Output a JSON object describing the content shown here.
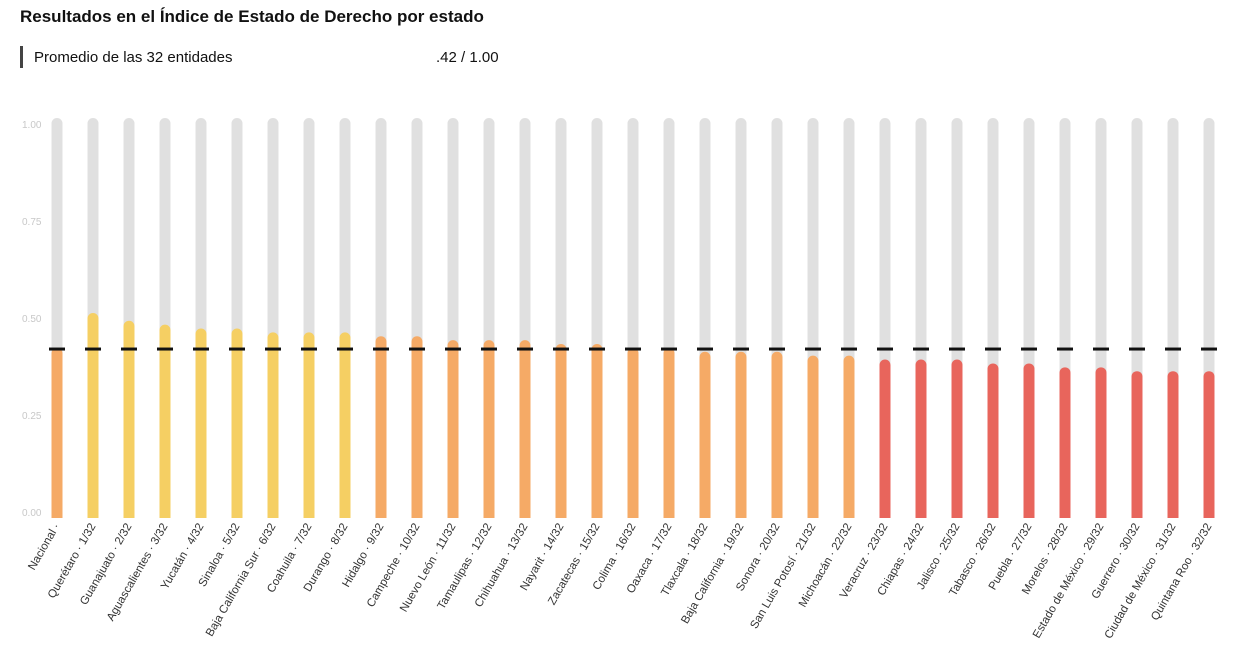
{
  "header": {
    "title": "Resultados en el Índice de Estado de Derecho por estado",
    "average_label": "Promedio de las 32 entidades",
    "average_value": ".42 / 1.00"
  },
  "colors": {
    "track": "#e0e0e0",
    "high": "#f5cf63",
    "mid": "#f5aa66",
    "low": "#e8655c",
    "marker": "#111111"
  },
  "chart_data": {
    "type": "bar",
    "title": "Resultados en el Índice de Estado de Derecho por estado",
    "xlabel": "",
    "ylabel": "",
    "ylim": [
      0,
      1
    ],
    "yticks": [
      "0.00",
      "0.25",
      "0.50",
      "0.75",
      "1.00"
    ],
    "ytick_values": [
      0,
      0.25,
      0.5,
      0.75,
      1.0
    ],
    "reference_line": {
      "value": 0.42
    },
    "grid": false,
    "categories": [
      "Nacional ·",
      "Querétaro · 1/32",
      "Guanajuato · 2/32",
      "Aguascalientes · 3/32",
      "Yucatán · 4/32",
      "Sinaloa · 5/32",
      "Baja California Sur · 6/32",
      "Coahuila · 7/32",
      "Durango · 8/32",
      "Hidalgo · 9/32",
      "Campeche · 10/32",
      "Nuevo León · 11/32",
      "Tamaulipas · 12/32",
      "Chihuahua · 13/32",
      "Nayarit · 14/32",
      "Zacatecas · 15/32",
      "Colima · 16/32",
      "Oaxaca · 17/32",
      "Tlaxcala · 18/32",
      "Baja California · 19/32",
      "Sonora · 20/32",
      "San Luis Potosí · 21/32",
      "Michoacán · 22/32",
      "Veracruz · 23/32",
      "Chiapas · 24/32",
      "Jalisco · 25/32",
      "Tabasco · 26/32",
      "Puebla · 27/32",
      "Morelos · 28/32",
      "Estado de México · 29/32",
      "Guerrero · 30/32",
      "Ciudad de México · 31/32",
      "Quintana Roo · 32/32"
    ],
    "values": [
      0.41,
      0.5,
      0.48,
      0.47,
      0.46,
      0.46,
      0.45,
      0.45,
      0.45,
      0.44,
      0.44,
      0.43,
      0.43,
      0.43,
      0.42,
      0.42,
      0.41,
      0.41,
      0.4,
      0.4,
      0.4,
      0.39,
      0.39,
      0.38,
      0.38,
      0.38,
      0.37,
      0.37,
      0.36,
      0.36,
      0.35,
      0.35,
      0.35
    ],
    "bar_colors": [
      "mid",
      "high",
      "high",
      "high",
      "high",
      "high",
      "high",
      "high",
      "high",
      "mid",
      "mid",
      "mid",
      "mid",
      "mid",
      "mid",
      "mid",
      "mid",
      "mid",
      "mid",
      "mid",
      "mid",
      "mid",
      "mid",
      "low",
      "low",
      "low",
      "low",
      "low",
      "low",
      "low",
      "low",
      "low",
      "low"
    ]
  }
}
